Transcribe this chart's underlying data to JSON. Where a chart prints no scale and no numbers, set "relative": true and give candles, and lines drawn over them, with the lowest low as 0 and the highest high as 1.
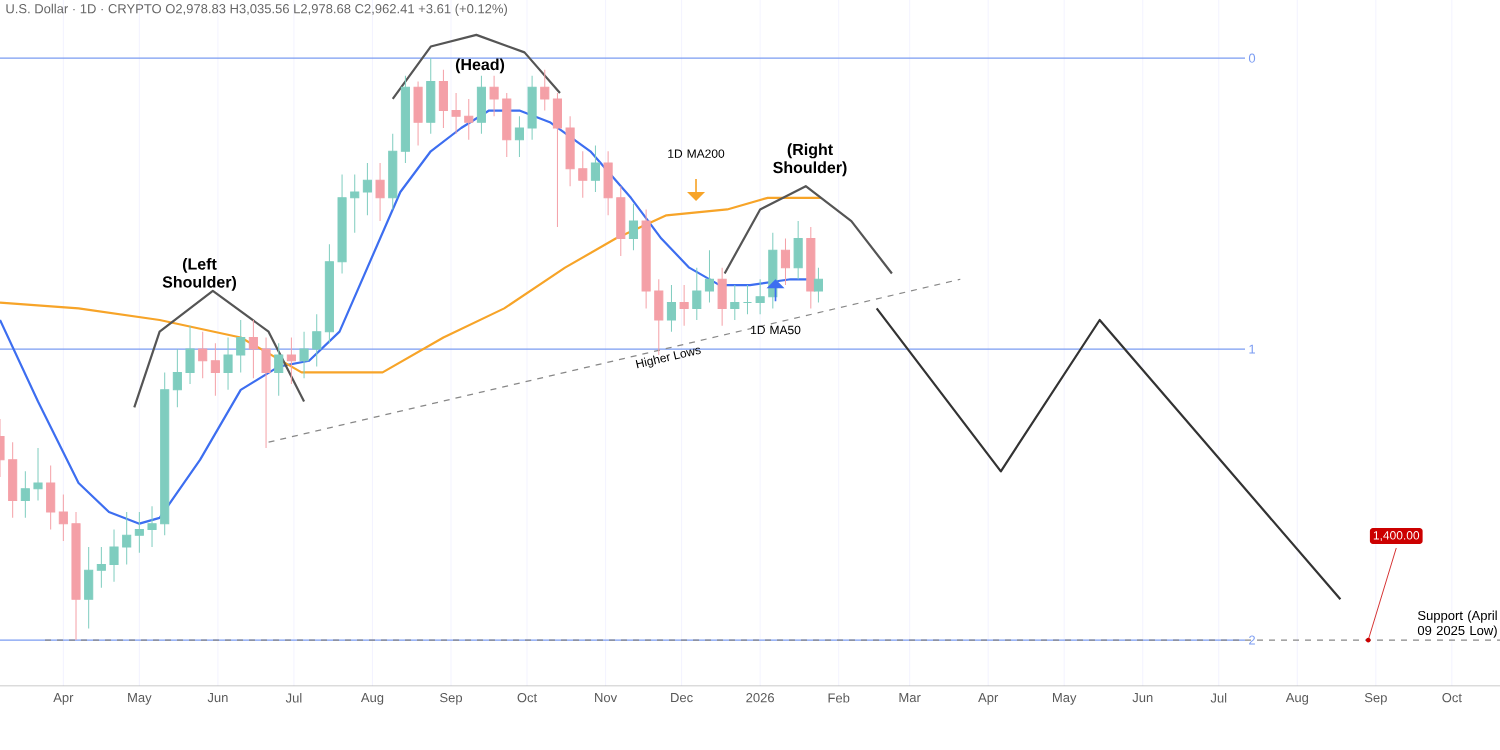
{
  "chart_data": {
    "type": "candlestick",
    "relative": true,
    "grid": "x",
    "xlim": [
      "2025-03-07",
      "2026-10-20"
    ],
    "xticks": [
      {
        "value": "2025-04-01",
        "label": "Apr"
      },
      {
        "value": "2025-05-01",
        "label": "May"
      },
      {
        "value": "2025-06-01",
        "label": "Jun"
      },
      {
        "value": "2025-07-01",
        "label": "Jul"
      },
      {
        "value": "2025-08-01",
        "label": "Aug"
      },
      {
        "value": "2025-09-01",
        "label": "Sep"
      },
      {
        "value": "2025-10-01",
        "label": "Oct"
      },
      {
        "value": "2025-11-01",
        "label": "Nov"
      },
      {
        "value": "2025-12-01",
        "label": "Dec"
      },
      {
        "value": "2026-01-01",
        "label": "2026"
      },
      {
        "value": "2026-02-01",
        "label": "Feb"
      },
      {
        "value": "2026-03-01",
        "label": "Mar"
      },
      {
        "value": "2026-04-01",
        "label": "Apr"
      },
      {
        "value": "2026-05-01",
        "label": "May"
      },
      {
        "value": "2026-06-01",
        "label": "Jun"
      },
      {
        "value": "2026-07-01",
        "label": "Jul"
      },
      {
        "value": "2026-08-01",
        "label": "Aug"
      },
      {
        "value": "2026-09-01",
        "label": "Sep"
      },
      {
        "value": "2026-10-01",
        "label": "Oct"
      }
    ],
    "x": [
      "2025-03-07",
      "2025-03-12",
      "2025-03-17",
      "2025-03-22",
      "2025-03-27",
      "2025-04-01",
      "2025-04-06",
      "2025-04-11",
      "2025-04-16",
      "2025-04-21",
      "2025-04-26",
      "2025-05-01",
      "2025-05-06",
      "2025-05-11",
      "2025-05-16",
      "2025-05-21",
      "2025-05-26",
      "2025-05-31",
      "2025-06-05",
      "2025-06-10",
      "2025-06-15",
      "2025-06-20",
      "2025-06-25",
      "2025-06-30",
      "2025-07-05",
      "2025-07-10",
      "2025-07-15",
      "2025-07-20",
      "2025-07-25",
      "2025-07-30",
      "2025-08-04",
      "2025-08-09",
      "2025-08-14",
      "2025-08-19",
      "2025-08-24",
      "2025-08-29",
      "2025-09-03",
      "2025-09-08",
      "2025-09-13",
      "2025-09-18",
      "2025-09-23",
      "2025-09-28",
      "2025-10-03",
      "2025-10-08",
      "2025-10-13",
      "2025-10-18",
      "2025-10-23",
      "2025-10-28",
      "2025-11-02",
      "2025-11-07",
      "2025-11-12",
      "2025-11-17",
      "2025-11-22",
      "2025-11-27",
      "2025-12-02",
      "2025-12-07",
      "2025-12-12",
      "2025-12-17",
      "2025-12-22",
      "2025-12-27",
      "2026-01-01",
      "2026-01-06",
      "2026-01-11",
      "2026-01-16",
      "2026-01-21",
      "2026-01-24"
    ],
    "ohlc": [
      [
        0.35,
        0.38,
        0.28,
        0.31
      ],
      [
        0.31,
        0.34,
        0.21,
        0.24
      ],
      [
        0.24,
        0.29,
        0.21,
        0.26
      ],
      [
        0.26,
        0.33,
        0.24,
        0.27
      ],
      [
        0.27,
        0.3,
        0.19,
        0.22
      ],
      [
        0.22,
        0.25,
        0.17,
        0.2
      ],
      [
        0.2,
        0.22,
        0,
        0.07
      ],
      [
        0.07,
        0.16,
        0.02,
        0.12
      ],
      [
        0.12,
        0.16,
        0.09,
        0.13
      ],
      [
        0.13,
        0.19,
        0.1,
        0.16
      ],
      [
        0.16,
        0.22,
        0.13,
        0.18
      ],
      [
        0.18,
        0.22,
        0.15,
        0.19
      ],
      [
        0.19,
        0.23,
        0.16,
        0.2
      ],
      [
        0.2,
        0.46,
        0.18,
        0.43
      ],
      [
        0.43,
        0.5,
        0.4,
        0.46
      ],
      [
        0.46,
        0.54,
        0.44,
        0.5
      ],
      [
        0.5,
        0.53,
        0.45,
        0.48
      ],
      [
        0.48,
        0.51,
        0.42,
        0.46
      ],
      [
        0.46,
        0.52,
        0.43,
        0.49
      ],
      [
        0.49,
        0.55,
        0.46,
        0.52
      ],
      [
        0.52,
        0.55,
        0.45,
        0.5
      ],
      [
        0.5,
        0.52,
        0.33,
        0.46
      ],
      [
        0.46,
        0.51,
        0.42,
        0.49
      ],
      [
        0.49,
        0.52,
        0.44,
        0.48
      ],
      [
        0.48,
        0.53,
        0.45,
        0.5
      ],
      [
        0.5,
        0.56,
        0.47,
        0.53
      ],
      [
        0.53,
        0.68,
        0.51,
        0.65
      ],
      [
        0.65,
        0.8,
        0.63,
        0.76
      ],
      [
        0.76,
        0.8,
        0.7,
        0.77
      ],
      [
        0.77,
        0.82,
        0.73,
        0.79
      ],
      [
        0.79,
        0.82,
        0.72,
        0.76
      ],
      [
        0.76,
        0.87,
        0.74,
        0.84
      ],
      [
        0.84,
        0.97,
        0.82,
        0.95
      ],
      [
        0.95,
        0.96,
        0.85,
        0.89
      ],
      [
        0.89,
        1,
        0.87,
        0.96
      ],
      [
        0.96,
        0.98,
        0.88,
        0.91
      ],
      [
        0.91,
        0.94,
        0.87,
        0.9
      ],
      [
        0.9,
        0.93,
        0.86,
        0.89
      ],
      [
        0.89,
        0.97,
        0.87,
        0.95
      ],
      [
        0.95,
        0.97,
        0.9,
        0.93
      ],
      [
        0.93,
        0.94,
        0.83,
        0.86
      ],
      [
        0.86,
        0.9,
        0.83,
        0.88
      ],
      [
        0.88,
        0.97,
        0.86,
        0.95
      ],
      [
        0.95,
        0.98,
        0.91,
        0.93
      ],
      [
        0.93,
        0.94,
        0.71,
        0.88
      ],
      [
        0.88,
        0.9,
        0.78,
        0.81
      ],
      [
        0.81,
        0.84,
        0.76,
        0.79
      ],
      [
        0.79,
        0.85,
        0.77,
        0.82
      ],
      [
        0.82,
        0.84,
        0.73,
        0.76
      ],
      [
        0.76,
        0.78,
        0.66,
        0.69
      ],
      [
        0.69,
        0.75,
        0.67,
        0.72
      ],
      [
        0.72,
        0.74,
        0.57,
        0.6
      ],
      [
        0.6,
        0.62,
        0.49,
        0.55
      ],
      [
        0.55,
        0.61,
        0.53,
        0.58
      ],
      [
        0.58,
        0.61,
        0.54,
        0.57
      ],
      [
        0.57,
        0.64,
        0.55,
        0.6
      ],
      [
        0.6,
        0.67,
        0.58,
        0.62
      ],
      [
        0.62,
        0.64,
        0.54,
        0.57
      ],
      [
        0.57,
        0.61,
        0.55,
        0.58
      ],
      [
        0.58,
        0.61,
        0.56,
        0.58
      ],
      [
        0.58,
        0.62,
        0.56,
        0.59
      ],
      [
        0.59,
        0.7,
        0.57,
        0.67
      ],
      [
        0.67,
        0.69,
        0.61,
        0.64
      ],
      [
        0.64,
        0.72,
        0.62,
        0.69
      ],
      [
        0.69,
        0.71,
        0.57,
        0.6
      ],
      [
        0.6,
        0.64,
        0.58,
        0.62
      ]
    ],
    "colors": [
      "#f4a0a7",
      "#f4a0a7",
      "#7fcdbf",
      "#7fcdbf",
      "#f4a0a7",
      "#f4a0a7",
      "#f4a0a7",
      "#7fcdbf",
      "#7fcdbf",
      "#7fcdbf",
      "#7fcdbf",
      "#7fcdbf",
      "#7fcdbf",
      "#7fcdbf",
      "#7fcdbf",
      "#7fcdbf",
      "#f4a0a7",
      "#f4a0a7",
      "#7fcdbf",
      "#7fcdbf",
      "#f4a0a7",
      "#f4a0a7",
      "#7fcdbf",
      "#f4a0a7",
      "#7fcdbf",
      "#7fcdbf",
      "#7fcdbf",
      "#7fcdbf",
      "#7fcdbf",
      "#7fcdbf",
      "#f4a0a7",
      "#7fcdbf",
      "#7fcdbf",
      "#f4a0a7",
      "#7fcdbf",
      "#f4a0a7",
      "#f4a0a7",
      "#f4a0a7",
      "#7fcdbf",
      "#f4a0a7",
      "#f4a0a7",
      "#7fcdbf",
      "#7fcdbf",
      "#f4a0a7",
      "#f4a0a7",
      "#f4a0a7",
      "#f4a0a7",
      "#7fcdbf",
      "#f4a0a7",
      "#f4a0a7",
      "#7fcdbf",
      "#f4a0a7",
      "#f4a0a7",
      "#7fcdbf",
      "#f4a0a7",
      "#7fcdbf",
      "#7fcdbf",
      "#f4a0a7",
      "#7fcdbf",
      "#7fcdbf",
      "#7fcdbf",
      "#7fcdbf",
      "#f4a0a7",
      "#7fcdbf",
      "#f4a0a7",
      "#7fcdbf"
    ],
    "series": [
      {
        "type": "line",
        "color": "#3d6ef0",
        "x": [
          "2025-03-07",
          "2025-03-22",
          "2025-04-07",
          "2025-04-19",
          "2025-05-01",
          "2025-05-09",
          "2025-05-25",
          "2025-06-10",
          "2025-06-25",
          "2025-07-07",
          "2025-07-19",
          "2025-07-31",
          "2025-08-12",
          "2025-08-24",
          "2025-09-05",
          "2025-09-16",
          "2025-09-28",
          "2025-10-10",
          "2025-10-26",
          "2025-11-11",
          "2025-11-23",
          "2025-12-04",
          "2025-12-16",
          "2025-12-28",
          "2026-01-13",
          "2026-01-22"
        ],
        "values": [
          0.55,
          0.41,
          0.27,
          0.22,
          0.2,
          0.21,
          0.31,
          0.43,
          0.47,
          0.48,
          0.53,
          0.65,
          0.77,
          0.84,
          0.88,
          0.91,
          0.91,
          0.89,
          0.84,
          0.76,
          0.69,
          0.64,
          0.61,
          0.61,
          0.62,
          0.62
        ]
      },
      {
        "type": "line",
        "color": "#f7a428",
        "x": [
          "2025-03-07",
          "2025-04-07",
          "2025-05-09",
          "2025-06-10",
          "2025-07-04",
          "2025-07-16",
          "2025-08-05",
          "2025-08-29",
          "2025-09-22",
          "2025-10-16",
          "2025-11-05",
          "2025-11-25",
          "2025-12-19",
          "2026-01-04",
          "2026-01-25"
        ],
        "values": [
          0.58,
          0.57,
          0.55,
          0.52,
          0.46,
          0.46,
          0.46,
          0.52,
          0.57,
          0.64,
          0.69,
          0.73,
          0.74,
          0.76,
          0.76
        ]
      },
      {
        "type": "line",
        "color": "#555555",
        "x": [
          "2025-04-29",
          "2025-05-09",
          "2025-05-30",
          "2025-06-21",
          "2025-07-05"
        ],
        "values": [
          0.4,
          0.53,
          0.6,
          0.53,
          0.41
        ]
      },
      {
        "type": "line",
        "color": "#555555",
        "x": [
          "2025-08-09",
          "2025-08-24",
          "2025-09-11",
          "2025-09-30",
          "2025-10-14"
        ],
        "values": [
          0.93,
          1.02,
          1.04,
          1.01,
          0.94
        ]
      },
      {
        "type": "line",
        "color": "#555555",
        "x": [
          "2025-12-18",
          "2026-01-01",
          "2026-01-19",
          "2026-02-06",
          "2026-02-22"
        ],
        "values": [
          0.63,
          0.74,
          0.78,
          0.72,
          0.63
        ]
      },
      {
        "type": "line",
        "color": "#333333",
        "x": [
          "2026-02-16",
          "2026-04-06",
          "2026-05-15",
          "2026-08-18"
        ],
        "values": [
          0.57,
          0.29,
          0.55,
          0.07
        ]
      },
      {
        "type": "line",
        "color": "#888888",
        "line_style": "dashed",
        "x": [
          "2025-06-21",
          "2026-03-21"
        ],
        "values": [
          0.34,
          0.62
        ]
      }
    ],
    "ref_lines": [
      {
        "axis": "y",
        "value": 1,
        "color": "#7b9cf2"
      },
      {
        "axis": "y",
        "value": 0.5,
        "color": "#7b9cf2"
      },
      {
        "axis": "y",
        "value": 0,
        "color": "#7b9cf2"
      },
      {
        "axis": "y",
        "value": 0,
        "label": "Support (April 09 2025 Low)",
        "color": "#888888",
        "line_style": "dashed"
      }
    ],
    "annotations": [
      "U.S. Dollar · 1D · CRYPTO O2,978.83 H3,035.56 L2,978.68 C2,962.41 +3.61 (+0.12%)",
      "(Left Shoulder)",
      "(Head)",
      "(Right Shoulder)",
      "1D MA200",
      "1D MA50",
      {
        "text": "Higher Lows",
        "x": "2025-11-25",
        "y": 0.5
      },
      {
        "text": "1,400.00",
        "x": "2026-08-29",
        "y": 0
      },
      "0",
      "1",
      "2"
    ]
  }
}
